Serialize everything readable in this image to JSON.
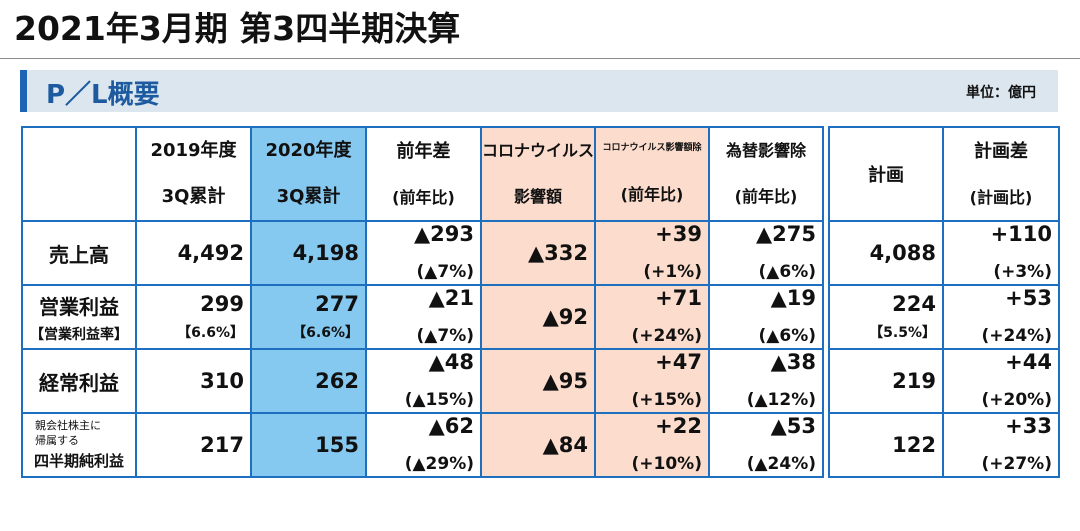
{
  "page": {
    "title": "2021年3月期 第3四半期決算",
    "section_title": "P／L概要",
    "unit": "単位：億円"
  },
  "table": {
    "headers": {
      "y2019": [
        "2019年度",
        "3Q累計"
      ],
      "y2020": [
        "2020年度",
        "3Q累計"
      ],
      "yoy": [
        "前年差",
        "(前年比)"
      ],
      "covid_impact": [
        "コロナウイルス",
        "影響額"
      ],
      "excl_covid": [
        "コロナウイルス影響額除",
        "(前年比)"
      ],
      "excl_fx": [
        "為替影響除",
        "(前年比)"
      ],
      "plan": "計画",
      "vs_plan": [
        "計画差",
        "(計画比)"
      ]
    },
    "rows": [
      {
        "label": "売上高",
        "y2019": "4,492",
        "y2020": "4,198",
        "yoy": "▲293",
        "yoy_pct": "(▲7%)",
        "covid": "▲332",
        "excl_covid": "+39",
        "excl_covid_pct": "(+1%)",
        "excl_fx": "▲275",
        "excl_fx_pct": "(▲6%)",
        "plan": "4,088",
        "vs_plan": "+110",
        "vs_plan_pct": "(+3%)"
      },
      {
        "label": "営業利益",
        "label_sub": "【営業利益率】",
        "y2019": "299",
        "y2019_sub": "【6.6%】",
        "y2020": "277",
        "y2020_sub": "【6.6%】",
        "yoy": "▲21",
        "yoy_pct": "(▲7%)",
        "covid": "▲92",
        "excl_covid": "+71",
        "excl_covid_pct": "(+24%)",
        "excl_fx": "▲19",
        "excl_fx_pct": "(▲6%)",
        "plan": "224",
        "plan_sub": "【5.5%】",
        "vs_plan": "+53",
        "vs_plan_pct": "(+24%)"
      },
      {
        "label": "経常利益",
        "y2019": "310",
        "y2020": "262",
        "yoy": "▲48",
        "yoy_pct": "(▲15%)",
        "covid": "▲95",
        "excl_covid": "+47",
        "excl_covid_pct": "(+15%)",
        "excl_fx": "▲38",
        "excl_fx_pct": "(▲12%)",
        "plan": "219",
        "vs_plan": "+44",
        "vs_plan_pct": "(+20%)"
      },
      {
        "label_small_1": "親会社株主に",
        "label_small_2": "帰属する",
        "label": "四半期純利益",
        "y2019": "217",
        "y2020": "155",
        "yoy": "▲62",
        "yoy_pct": "(▲29%)",
        "covid": "▲84",
        "excl_covid": "+22",
        "excl_covid_pct": "(+10%)",
        "excl_fx": "▲53",
        "excl_fx_pct": "(▲24%)",
        "plan": "122",
        "vs_plan": "+33",
        "vs_plan_pct": "(+27%)"
      }
    ]
  },
  "colors": {
    "border": "#1e6fbf",
    "y2020_fill": "#85c8f0",
    "covid_fill": "#fbdccd",
    "section_bar": "#dce6ee",
    "accent": "#1d64b4"
  }
}
